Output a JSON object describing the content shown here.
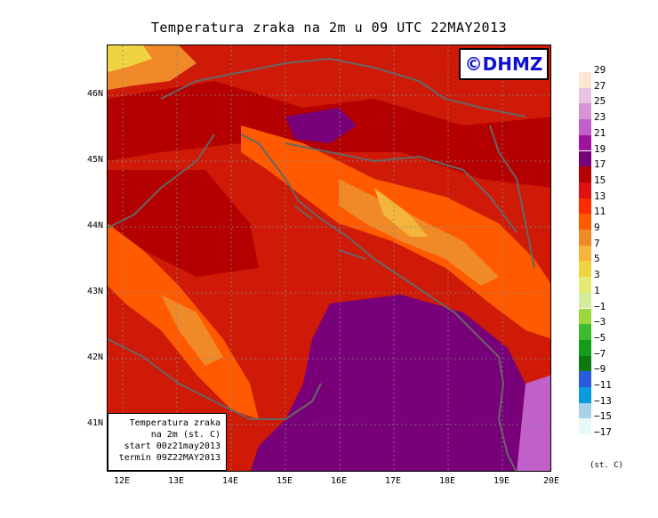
{
  "title": "Temperatura zraka na 2m u 09 UTC 22MAY2013",
  "logo": "©DHMZ",
  "info_box": {
    "line1": "Temperatura zraka",
    "line2": "na 2m (st. C)",
    "line3": "start 00z21may2013",
    "line4": "termin 09Z22MAY2013"
  },
  "lat_labels": [
    "46N",
    "45N",
    "44N",
    "43N",
    "42N",
    "41N"
  ],
  "lon_labels": [
    "12E",
    "13E",
    "14E",
    "15E",
    "16E",
    "17E",
    "18E",
    "19E",
    "20E"
  ],
  "legend": {
    "labels": [
      "29",
      "27",
      "25",
      "23",
      "21",
      "19",
      "17",
      "15",
      "13",
      "11",
      "9",
      "7",
      "5",
      "3",
      "1",
      "−1",
      "−3",
      "−5",
      "−7",
      "−9",
      "−11",
      "−13",
      "−15",
      "−17"
    ],
    "colors": [
      "#fde6d2",
      "#e8c4e2",
      "#d795d5",
      "#c060c8",
      "#a012a0",
      "#780078",
      "#b40000",
      "#e01010",
      "#ff2c00",
      "#ff5a00",
      "#f08a28",
      "#f5b43c",
      "#efd442",
      "#e5ea72",
      "#d4ec9c",
      "#9ad83c",
      "#3cbc2c",
      "#129c1a",
      "#0c7a10",
      "#2a5ae0",
      "#0a9ae0",
      "#a8d2e8",
      "#e8f8f8"
    ],
    "units": "(st. C)"
  },
  "colors": {
    "land_base": "#cf1a08",
    "sea_warm": "#780078",
    "coastline": "#666666"
  }
}
